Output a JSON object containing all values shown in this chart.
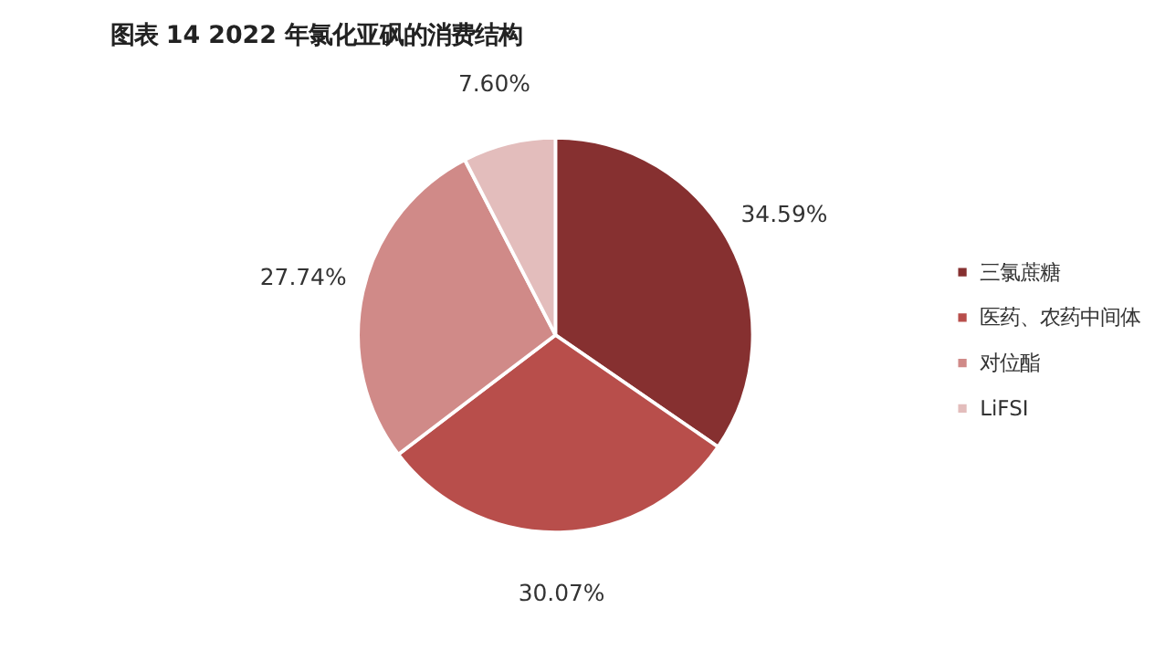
{
  "chart_data": {
    "type": "pie",
    "title": "图表 14 2022 年氯化亚砜的消费结构",
    "categories": [
      "三氯蔗糖",
      "医药、农药中间体",
      "对位酯",
      "LiFSI"
    ],
    "values": [
      34.59,
      30.07,
      27.74,
      7.6
    ],
    "value_labels": [
      "34.59%",
      "30.07%",
      "27.74%",
      "7.60%"
    ],
    "colors": [
      "#863030",
      "#b84e4b",
      "#d08a88",
      "#e3bdbc"
    ],
    "legend": "right"
  }
}
